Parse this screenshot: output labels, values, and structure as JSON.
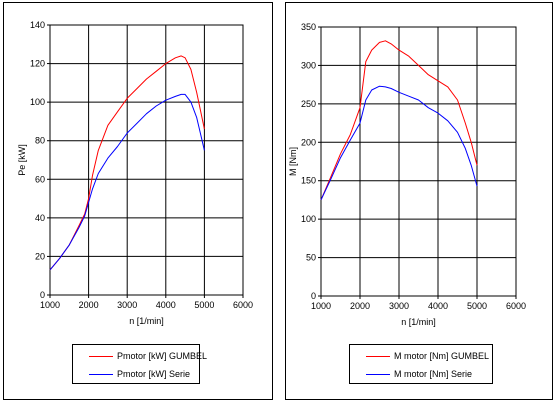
{
  "chart_data": [
    {
      "type": "line",
      "ylabel": "Pe [kW]",
      "xlabel": "n [1/min]",
      "xlim": [
        1000,
        6000
      ],
      "ylim": [
        0,
        140
      ],
      "xticks": [
        1000,
        2000,
        3000,
        4000,
        5000,
        6000
      ],
      "yticks": [
        0,
        20,
        40,
        60,
        80,
        100,
        120,
        140
      ],
      "grid": true,
      "legend_position": "bottom",
      "series": [
        {
          "name": "Pmotor [kW] GUMBEL",
          "color": "#ff0000",
          "x": [
            1000,
            1250,
            1500,
            1750,
            1900,
            2000,
            2100,
            2250,
            2500,
            2750,
            3000,
            3250,
            3500,
            3750,
            4000,
            4250,
            4400,
            4500,
            4650,
            4800,
            5000
          ],
          "y": [
            13,
            19,
            26,
            36,
            42,
            50,
            62,
            75,
            88,
            95,
            102,
            107,
            112,
            116,
            120,
            123,
            124,
            123,
            117,
            105,
            86
          ]
        },
        {
          "name": "Pmotor [kW] Serie",
          "color": "#0000ff",
          "x": [
            1000,
            1250,
            1500,
            1750,
            1900,
            2000,
            2100,
            2250,
            2500,
            2750,
            3000,
            3250,
            3500,
            3750,
            4000,
            4250,
            4400,
            4500,
            4650,
            4800,
            5000
          ],
          "y": [
            13,
            19,
            26,
            35,
            41,
            48,
            55,
            63,
            71,
            77,
            84,
            89,
            94,
            98,
            101,
            103,
            104,
            104,
            100,
            92,
            75
          ]
        }
      ]
    },
    {
      "type": "line",
      "ylabel": "M [Nm]",
      "xlabel": "n [1/min]",
      "xlim": [
        1000,
        6000
      ],
      "ylim": [
        0,
        350
      ],
      "xticks": [
        1000,
        2000,
        3000,
        4000,
        5000,
        6000
      ],
      "yticks": [
        0,
        50,
        100,
        150,
        200,
        250,
        300,
        350
      ],
      "grid": true,
      "legend_position": "bottom",
      "series": [
        {
          "name": "M motor [Nm] GUMBEL",
          "color": "#ff0000",
          "x": [
            1000,
            1250,
            1500,
            1750,
            2000,
            2150,
            2300,
            2500,
            2650,
            2800,
            3000,
            3250,
            3500,
            3750,
            4000,
            4250,
            4500,
            4700,
            4850,
            5000
          ],
          "y": [
            125,
            155,
            185,
            210,
            245,
            305,
            320,
            330,
            332,
            328,
            320,
            312,
            300,
            288,
            280,
            272,
            255,
            225,
            200,
            170
          ]
        },
        {
          "name": "M motor [Nm] Serie",
          "color": "#0000ff",
          "x": [
            1000,
            1250,
            1500,
            1750,
            2000,
            2150,
            2300,
            2500,
            2650,
            2800,
            3000,
            3250,
            3500,
            3750,
            4000,
            4250,
            4500,
            4700,
            4850,
            5000
          ],
          "y": [
            125,
            152,
            180,
            203,
            225,
            255,
            268,
            273,
            272,
            270,
            265,
            260,
            255,
            245,
            238,
            228,
            213,
            192,
            170,
            143
          ]
        }
      ]
    }
  ]
}
